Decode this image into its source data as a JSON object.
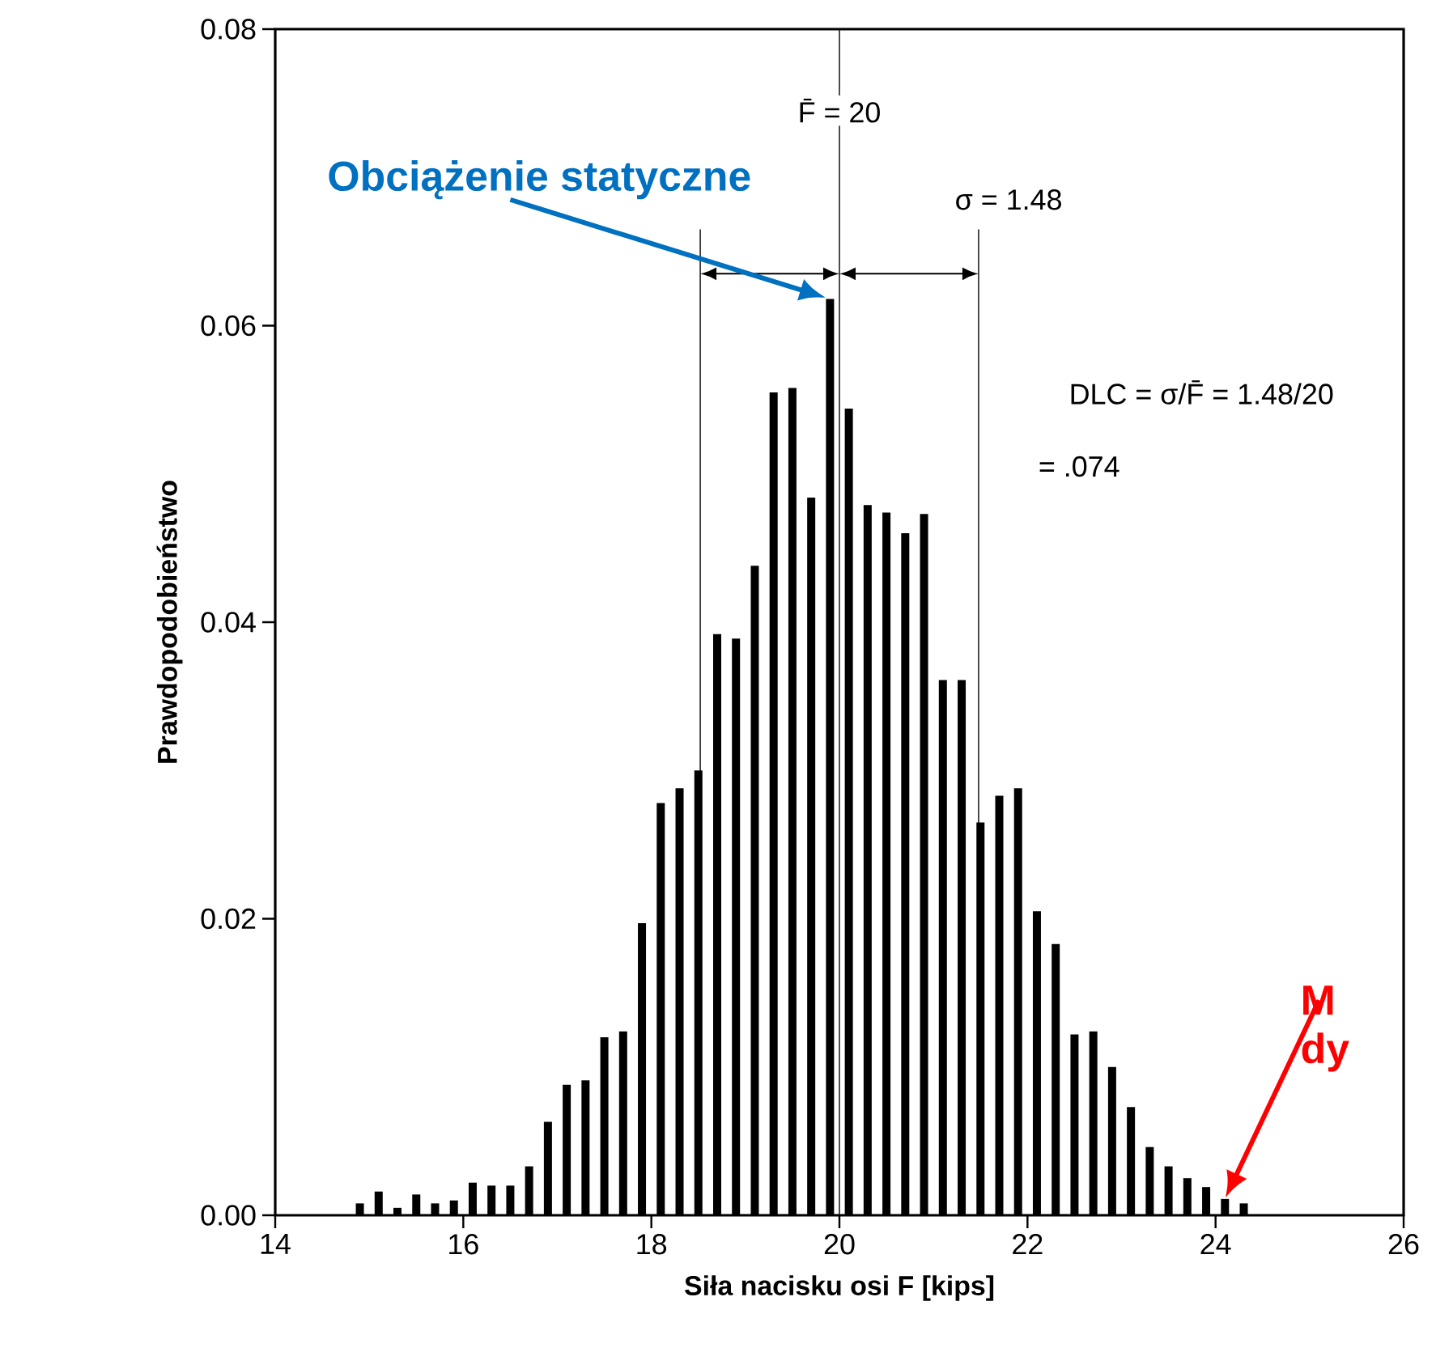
{
  "chart_data": {
    "type": "bar",
    "xlabel": "Siła nacisku osi F [kips]",
    "ylabel": "Prawdopodobieństwo",
    "x": [
      14.9,
      15.1,
      15.3,
      15.5,
      15.7,
      15.9,
      16.1,
      16.3,
      16.5,
      16.7,
      16.9,
      17.1,
      17.3,
      17.5,
      17.7,
      17.9,
      18.1,
      18.3,
      18.5,
      18.7,
      18.9,
      19.1,
      19.3,
      19.5,
      19.7,
      19.9,
      20.1,
      20.3,
      20.5,
      20.7,
      20.9,
      21.1,
      21.3,
      21.5,
      21.7,
      21.9,
      22.1,
      22.3,
      22.5,
      22.7,
      22.9,
      23.1,
      23.3,
      23.5,
      23.7,
      23.9,
      24.1,
      24.3
    ],
    "values": [
      0.0008,
      0.0016,
      0.0005,
      0.0014,
      0.0008,
      0.001,
      0.0022,
      0.002,
      0.002,
      0.0033,
      0.0063,
      0.0088,
      0.0091,
      0.012,
      0.0124,
      0.0197,
      0.0278,
      0.0288,
      0.03,
      0.0392,
      0.0389,
      0.0438,
      0.0555,
      0.0558,
      0.0484,
      0.0618,
      0.0544,
      0.0479,
      0.0474,
      0.046,
      0.0473,
      0.0361,
      0.0361,
      0.0265,
      0.0283,
      0.0288,
      0.0205,
      0.0183,
      0.0122,
      0.0124,
      0.01,
      0.0073,
      0.0046,
      0.0033,
      0.0025,
      0.0019,
      0.0011,
      0.0008
    ],
    "color": "#000000",
    "xlim": [
      14,
      26
    ],
    "xticks": [
      14,
      16,
      18,
      20,
      22,
      24,
      26
    ],
    "ylim": [
      0,
      0.08
    ],
    "yticks": [
      {
        "value": 0,
        "label": "0.00"
      },
      {
        "value": 0.02,
        "label": "0.02"
      },
      {
        "value": 0.04,
        "label": "0.04"
      },
      {
        "value": 0.06,
        "label": "0.06"
      },
      {
        "value": 0.08,
        "label": "0.08"
      }
    ],
    "ref_lines": [
      {
        "axis": "x",
        "value": 20,
        "label": "F̄ = 20"
      },
      {
        "axis": "x",
        "value": 18.52
      },
      {
        "axis": "x",
        "value": 21.48
      }
    ],
    "annotations": [
      "Obciążenie statyczne",
      "M dy",
      "σ = 1.48",
      "DLC = σ/F̄ = 1.48/20",
      "= .074"
    ],
    "grid": false
  }
}
